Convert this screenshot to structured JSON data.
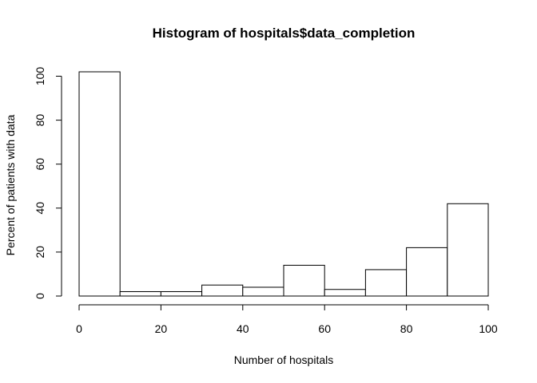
{
  "chart_data": {
    "type": "bar",
    "title": "Histogram of hospitals$data_completion",
    "xlabel": "Number of hospitals",
    "ylabel": "Percent of patients with data",
    "bins": [
      {
        "start": 0,
        "end": 10,
        "value": 102
      },
      {
        "start": 10,
        "end": 20,
        "value": 2
      },
      {
        "start": 20,
        "end": 30,
        "value": 2
      },
      {
        "start": 30,
        "end": 40,
        "value": 5
      },
      {
        "start": 40,
        "end": 50,
        "value": 4
      },
      {
        "start": 50,
        "end": 60,
        "value": 14
      },
      {
        "start": 60,
        "end": 70,
        "value": 3
      },
      {
        "start": 70,
        "end": 80,
        "value": 12
      },
      {
        "start": 80,
        "end": 90,
        "value": 22
      },
      {
        "start": 90,
        "end": 100,
        "value": 42
      }
    ],
    "xlim": [
      0,
      100
    ],
    "ylim": [
      0,
      102
    ],
    "x_ticks": [
      0,
      20,
      40,
      60,
      80,
      100
    ],
    "y_ticks": [
      0,
      20,
      40,
      60,
      80,
      100
    ],
    "x_tick_labels": [
      "0",
      "20",
      "40",
      "60",
      "80",
      "100"
    ],
    "y_tick_labels": [
      "0",
      "20",
      "40",
      "60",
      "80",
      "100"
    ],
    "grid": false,
    "legend": "none",
    "colors": {
      "bar_fill": "#ffffff",
      "bar_stroke": "#000000",
      "text": "#000000"
    }
  }
}
